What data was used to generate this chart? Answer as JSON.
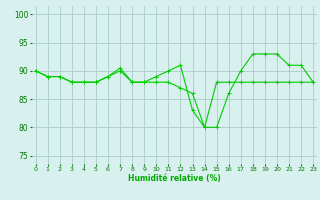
{
  "line1_x": [
    0,
    1,
    2,
    3,
    4,
    5,
    6,
    7,
    8,
    9,
    10,
    11,
    12,
    13,
    14,
    15,
    16,
    17,
    18,
    19,
    20,
    21,
    22,
    23
  ],
  "line1_y": [
    90,
    89,
    89,
    88,
    88,
    88,
    89,
    90,
    88,
    88,
    88,
    88,
    87,
    86,
    80,
    80,
    86,
    90,
    93,
    93,
    93,
    91,
    91,
    88
  ],
  "line2_x": [
    0,
    1,
    2,
    3,
    4,
    5,
    6,
    7,
    8,
    9,
    10,
    11,
    12,
    13,
    14,
    15,
    16,
    17,
    18,
    19,
    20,
    21,
    22,
    23
  ],
  "line2_y": [
    90,
    89,
    89,
    88,
    88,
    88,
    89,
    90.5,
    88,
    88,
    89,
    90,
    91,
    83,
    80,
    88,
    88,
    88,
    88,
    88,
    88,
    88,
    88,
    88
  ],
  "line_color": "#00cc00",
  "bg_color": "#d8f0ee",
  "grid_color": "#aacccc",
  "xlabel": "Humidité relative (%)",
  "xlabel_color": "#00aa00",
  "yticks": [
    75,
    80,
    85,
    90,
    95,
    100
  ],
  "xticks": [
    0,
    1,
    2,
    3,
    4,
    5,
    6,
    7,
    8,
    9,
    10,
    11,
    12,
    13,
    14,
    15,
    16,
    17,
    18,
    19,
    20,
    21,
    22,
    23
  ],
  "xlim": [
    -0.3,
    23.3
  ],
  "ylim": [
    73.5,
    101.5
  ],
  "tick_color": "#007700",
  "marker": "+"
}
